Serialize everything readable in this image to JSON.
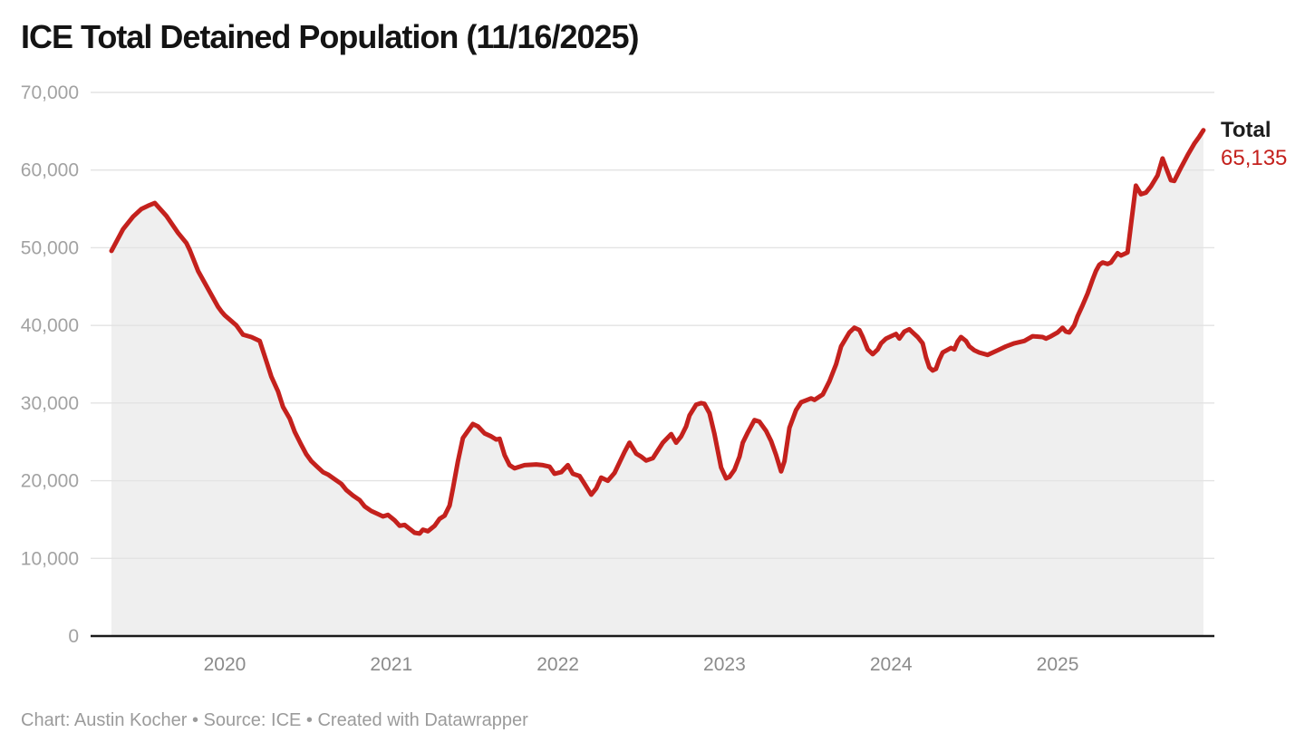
{
  "title": "ICE Total Detained Population (11/16/2025)",
  "footer": "Chart: Austin Kocher • Source: ICE • Created with Datawrapper",
  "annotation": {
    "label": "Total",
    "value": "65,135"
  },
  "colors": {
    "line": "#c4211d",
    "area_fill": "#efefef",
    "gridline": "#e3e3e3",
    "baseline": "#1a1a1a",
    "y_tick_text": "#a2a2a2",
    "x_tick_text": "#8b8b8b",
    "title_text": "#141414",
    "annotation_value": "#c4211d"
  },
  "chart_data": {
    "type": "area",
    "title": "ICE Total Detained Population (11/16/2025)",
    "xlabel": "",
    "ylabel": "",
    "legend": "none",
    "grid": "horizontal",
    "xlim": [
      2019.195,
      2025.941
    ],
    "ylim": [
      0,
      70000
    ],
    "x_ticks": [
      {
        "value": 2020,
        "label": "2020"
      },
      {
        "value": 2021,
        "label": "2021"
      },
      {
        "value": 2022,
        "label": "2022"
      },
      {
        "value": 2023,
        "label": "2023"
      },
      {
        "value": 2024,
        "label": "2024"
      },
      {
        "value": 2025,
        "label": "2025"
      }
    ],
    "y_ticks": [
      {
        "value": 0,
        "label": "0"
      },
      {
        "value": 10000,
        "label": "10,000"
      },
      {
        "value": 20000,
        "label": "20,000"
      },
      {
        "value": 30000,
        "label": "30,000"
      },
      {
        "value": 40000,
        "label": "40,000"
      },
      {
        "value": 50000,
        "label": "50,000"
      },
      {
        "value": 60000,
        "label": "60,000"
      },
      {
        "value": 70000,
        "label": "70,000"
      }
    ],
    "series": [
      {
        "name": "Total",
        "last_value": 65135,
        "points": [
          [
            2019.32,
            49600
          ],
          [
            2019.39,
            52400
          ],
          [
            2019.45,
            54000
          ],
          [
            2019.5,
            55000
          ],
          [
            2019.54,
            55400
          ],
          [
            2019.58,
            55750
          ],
          [
            2019.65,
            54100
          ],
          [
            2019.72,
            51900
          ],
          [
            2019.77,
            50600
          ],
          [
            2019.79,
            49700
          ],
          [
            2019.84,
            47000
          ],
          [
            2019.9,
            44700
          ],
          [
            2019.96,
            42400
          ],
          [
            2019.98,
            41800
          ],
          [
            2020.0,
            41300
          ],
          [
            2020.07,
            40000
          ],
          [
            2020.11,
            38800
          ],
          [
            2020.16,
            38500
          ],
          [
            2020.21,
            38000
          ],
          [
            2020.25,
            35400
          ],
          [
            2020.28,
            33400
          ],
          [
            2020.32,
            31500
          ],
          [
            2020.35,
            29500
          ],
          [
            2020.39,
            28000
          ],
          [
            2020.42,
            26300
          ],
          [
            2020.46,
            24600
          ],
          [
            2020.49,
            23400
          ],
          [
            2020.52,
            22500
          ],
          [
            2020.55,
            21900
          ],
          [
            2020.59,
            21100
          ],
          [
            2020.62,
            20800
          ],
          [
            2020.66,
            20200
          ],
          [
            2020.7,
            19600
          ],
          [
            2020.73,
            18800
          ],
          [
            2020.77,
            18100
          ],
          [
            2020.81,
            17500
          ],
          [
            2020.84,
            16700
          ],
          [
            2020.88,
            16100
          ],
          [
            2020.92,
            15700
          ],
          [
            2020.95,
            15400
          ],
          [
            2020.98,
            15600
          ],
          [
            2021.02,
            14900
          ],
          [
            2021.05,
            14200
          ],
          [
            2021.08,
            14300
          ],
          [
            2021.11,
            13800
          ],
          [
            2021.14,
            13300
          ],
          [
            2021.17,
            13200
          ],
          [
            2021.19,
            13700
          ],
          [
            2021.22,
            13500
          ],
          [
            2021.26,
            14200
          ],
          [
            2021.29,
            15100
          ],
          [
            2021.32,
            15500
          ],
          [
            2021.35,
            16800
          ],
          [
            2021.37,
            19000
          ],
          [
            2021.4,
            22500
          ],
          [
            2021.43,
            25500
          ],
          [
            2021.46,
            26400
          ],
          [
            2021.49,
            27300
          ],
          [
            2021.52,
            27000
          ],
          [
            2021.56,
            26100
          ],
          [
            2021.6,
            25700
          ],
          [
            2021.63,
            25300
          ],
          [
            2021.65,
            25400
          ],
          [
            2021.68,
            23300
          ],
          [
            2021.71,
            22000
          ],
          [
            2021.74,
            21600
          ],
          [
            2021.77,
            21800
          ],
          [
            2021.8,
            22000
          ],
          [
            2021.87,
            22100
          ],
          [
            2021.91,
            22000
          ],
          [
            2021.95,
            21800
          ],
          [
            2021.98,
            20900
          ],
          [
            2022.02,
            21100
          ],
          [
            2022.06,
            22000
          ],
          [
            2022.09,
            20900
          ],
          [
            2022.13,
            20600
          ],
          [
            2022.16,
            19600
          ],
          [
            2022.2,
            18200
          ],
          [
            2022.23,
            19000
          ],
          [
            2022.26,
            20400
          ],
          [
            2022.3,
            20000
          ],
          [
            2022.34,
            21000
          ],
          [
            2022.4,
            23700
          ],
          [
            2022.43,
            24900
          ],
          [
            2022.47,
            23500
          ],
          [
            2022.5,
            23100
          ],
          [
            2022.53,
            22600
          ],
          [
            2022.57,
            22900
          ],
          [
            2022.6,
            23900
          ],
          [
            2022.63,
            24900
          ],
          [
            2022.68,
            26000
          ],
          [
            2022.71,
            24900
          ],
          [
            2022.74,
            25700
          ],
          [
            2022.77,
            27000
          ],
          [
            2022.79,
            28400
          ],
          [
            2022.83,
            29800
          ],
          [
            2022.86,
            30000
          ],
          [
            2022.88,
            29900
          ],
          [
            2022.91,
            28700
          ],
          [
            2022.94,
            26000
          ],
          [
            2022.98,
            21700
          ],
          [
            2023.01,
            20300
          ],
          [
            2023.03,
            20500
          ],
          [
            2023.06,
            21400
          ],
          [
            2023.09,
            23100
          ],
          [
            2023.11,
            24900
          ],
          [
            2023.14,
            26200
          ],
          [
            2023.18,
            27800
          ],
          [
            2023.21,
            27600
          ],
          [
            2023.25,
            26400
          ],
          [
            2023.28,
            25100
          ],
          [
            2023.31,
            23300
          ],
          [
            2023.34,
            21200
          ],
          [
            2023.36,
            22500
          ],
          [
            2023.39,
            26800
          ],
          [
            2023.43,
            29100
          ],
          [
            2023.46,
            30100
          ],
          [
            2023.52,
            30600
          ],
          [
            2023.54,
            30400
          ],
          [
            2023.59,
            31100
          ],
          [
            2023.63,
            32800
          ],
          [
            2023.67,
            35000
          ],
          [
            2023.7,
            37300
          ],
          [
            2023.75,
            39100
          ],
          [
            2023.78,
            39700
          ],
          [
            2023.81,
            39400
          ],
          [
            2023.83,
            38500
          ],
          [
            2023.86,
            36900
          ],
          [
            2023.89,
            36300
          ],
          [
            2023.92,
            36900
          ],
          [
            2023.94,
            37700
          ],
          [
            2023.97,
            38300
          ],
          [
            2024.0,
            38600
          ],
          [
            2024.03,
            38900
          ],
          [
            2024.05,
            38300
          ],
          [
            2024.08,
            39200
          ],
          [
            2024.11,
            39500
          ],
          [
            2024.13,
            39100
          ],
          [
            2024.16,
            38500
          ],
          [
            2024.19,
            37700
          ],
          [
            2024.21,
            35900
          ],
          [
            2024.23,
            34600
          ],
          [
            2024.25,
            34200
          ],
          [
            2024.27,
            34400
          ],
          [
            2024.29,
            35600
          ],
          [
            2024.31,
            36500
          ],
          [
            2024.36,
            37100
          ],
          [
            2024.38,
            36900
          ],
          [
            2024.4,
            37900
          ],
          [
            2024.42,
            38500
          ],
          [
            2024.45,
            38000
          ],
          [
            2024.47,
            37300
          ],
          [
            2024.5,
            36800
          ],
          [
            2024.53,
            36500
          ],
          [
            2024.58,
            36200
          ],
          [
            2024.64,
            36800
          ],
          [
            2024.69,
            37300
          ],
          [
            2024.74,
            37700
          ],
          [
            2024.8,
            38000
          ],
          [
            2024.85,
            38600
          ],
          [
            2024.91,
            38500
          ],
          [
            2024.93,
            38300
          ],
          [
            2024.96,
            38600
          ],
          [
            2025.0,
            39100
          ],
          [
            2025.03,
            39700
          ],
          [
            2025.05,
            39200
          ],
          [
            2025.07,
            39100
          ],
          [
            2025.1,
            40000
          ],
          [
            2025.12,
            41200
          ],
          [
            2025.15,
            42600
          ],
          [
            2025.18,
            44100
          ],
          [
            2025.21,
            45900
          ],
          [
            2025.23,
            47000
          ],
          [
            2025.25,
            47800
          ],
          [
            2025.27,
            48100
          ],
          [
            2025.3,
            47900
          ],
          [
            2025.32,
            48100
          ],
          [
            2025.34,
            48700
          ],
          [
            2025.36,
            49300
          ],
          [
            2025.38,
            49000
          ],
          [
            2025.42,
            49400
          ],
          [
            2025.44,
            52900
          ],
          [
            2025.47,
            58000
          ],
          [
            2025.5,
            56900
          ],
          [
            2025.53,
            57100
          ],
          [
            2025.56,
            57900
          ],
          [
            2025.6,
            59300
          ],
          [
            2025.63,
            61500
          ],
          [
            2025.66,
            59800
          ],
          [
            2025.68,
            58700
          ],
          [
            2025.7,
            58600
          ],
          [
            2025.74,
            60300
          ],
          [
            2025.78,
            61900
          ],
          [
            2025.82,
            63400
          ],
          [
            2025.85,
            64300
          ],
          [
            2025.875,
            65135
          ]
        ]
      }
    ]
  }
}
